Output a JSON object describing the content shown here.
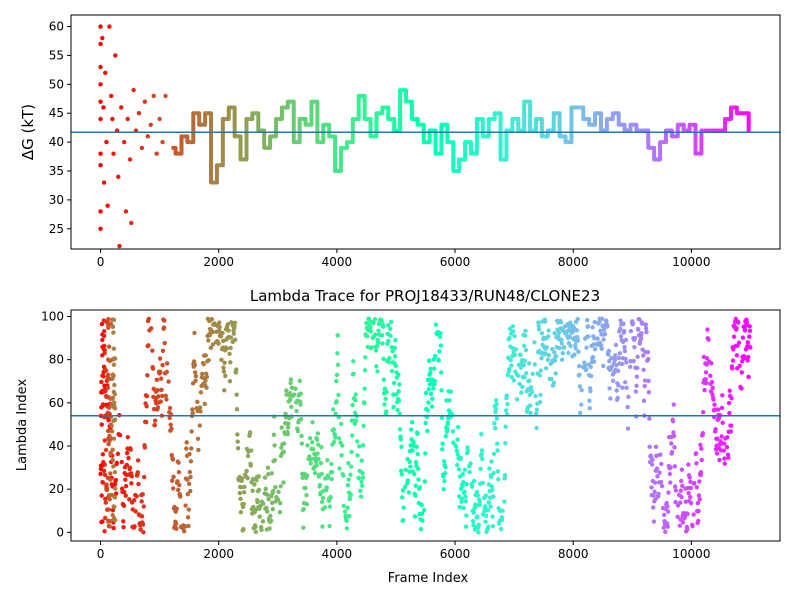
{
  "chart_data": [
    {
      "type": "scatter",
      "title": "",
      "xlabel": "",
      "ylabel": "ΔG (kT)",
      "xlim": [
        -500,
        11500
      ],
      "ylim": [
        21.5,
        62
      ],
      "xticks": [
        0,
        2000,
        4000,
        6000,
        8000,
        10000
      ],
      "yticks": [
        25,
        30,
        35,
        40,
        45,
        50,
        55,
        60
      ],
      "hline": 41.7,
      "colormap": "rainbow (red at frame 0 → violet at last frame)",
      "series": [
        {
          "points": [
            [
              0,
              60
            ],
            [
              0,
              57
            ],
            [
              0,
              53
            ],
            [
              0,
              50
            ],
            [
              0,
              47
            ],
            [
              0,
              44
            ],
            [
              0,
              38
            ],
            [
              0,
              36
            ],
            [
              0,
              28
            ],
            [
              0,
              25
            ],
            [
              30,
              58
            ],
            [
              50,
              46
            ],
            [
              60,
              33
            ],
            [
              80,
              52
            ],
            [
              100,
              40
            ],
            [
              120,
              29
            ],
            [
              150,
              60
            ],
            [
              180,
              48
            ],
            [
              200,
              44
            ],
            [
              220,
              38
            ],
            [
              250,
              55
            ],
            [
              280,
              42
            ],
            [
              300,
              34
            ],
            [
              320,
              22
            ],
            [
              350,
              46
            ],
            [
              400,
              40
            ],
            [
              430,
              28
            ],
            [
              460,
              44
            ],
            [
              500,
              37
            ],
            [
              520,
              26
            ],
            [
              560,
              49
            ],
            [
              600,
              42
            ],
            [
              650,
              45
            ],
            [
              700,
              39
            ],
            [
              750,
              47
            ],
            [
              800,
              41
            ],
            [
              850,
              43
            ],
            [
              900,
              48
            ],
            [
              950,
              38
            ],
            [
              1000,
              44
            ],
            [
              1050,
              40
            ],
            [
              1100,
              48
            ]
          ],
          "trace": [
            [
              1200,
              39
            ],
            [
              1300,
              38
            ],
            [
              1400,
              41
            ],
            [
              1500,
              40
            ],
            [
              1600,
              45
            ],
            [
              1700,
              43
            ],
            [
              1800,
              45
            ],
            [
              1900,
              33
            ],
            [
              2000,
              36
            ],
            [
              2100,
              44
            ],
            [
              2200,
              46
            ],
            [
              2300,
              41
            ],
            [
              2400,
              37
            ],
            [
              2500,
              44
            ],
            [
              2600,
              45
            ],
            [
              2700,
              42
            ],
            [
              2800,
              39
            ],
            [
              2900,
              41
            ],
            [
              3000,
              44
            ],
            [
              3100,
              46
            ],
            [
              3200,
              47
            ],
            [
              3300,
              40
            ],
            [
              3400,
              44
            ],
            [
              3500,
              43
            ],
            [
              3600,
              47
            ],
            [
              3700,
              40
            ],
            [
              3800,
              43
            ],
            [
              3900,
              41
            ],
            [
              4000,
              35
            ],
            [
              4100,
              39
            ],
            [
              4200,
              40
            ],
            [
              4300,
              44
            ],
            [
              4400,
              48
            ],
            [
              4500,
              44
            ],
            [
              4600,
              41
            ],
            [
              4700,
              45
            ],
            [
              4800,
              46
            ],
            [
              4900,
              44
            ],
            [
              5000,
              42
            ],
            [
              5100,
              49
            ],
            [
              5200,
              47
            ],
            [
              5300,
              44
            ],
            [
              5400,
              43
            ],
            [
              5500,
              40
            ],
            [
              5600,
              42
            ],
            [
              5700,
              38
            ],
            [
              5800,
              43
            ],
            [
              5900,
              40
            ],
            [
              6000,
              35
            ],
            [
              6100,
              37
            ],
            [
              6200,
              40
            ],
            [
              6300,
              38
            ],
            [
              6400,
              44
            ],
            [
              6500,
              41
            ],
            [
              6600,
              44
            ],
            [
              6700,
              45
            ],
            [
              6800,
              37
            ],
            [
              6900,
              42
            ],
            [
              7000,
              44
            ],
            [
              7100,
              42
            ],
            [
              7200,
              47
            ],
            [
              7300,
              42
            ],
            [
              7400,
              44
            ],
            [
              7500,
              41
            ],
            [
              7600,
              42
            ],
            [
              7700,
              45
            ],
            [
              7800,
              41
            ],
            [
              7900,
              40
            ],
            [
              8000,
              46
            ],
            [
              8100,
              46
            ],
            [
              8200,
              44
            ],
            [
              8300,
              43
            ],
            [
              8400,
              45
            ],
            [
              8500,
              42
            ],
            [
              8600,
              44
            ],
            [
              8700,
              45
            ],
            [
              8800,
              43
            ],
            [
              8900,
              42
            ],
            [
              9000,
              43
            ],
            [
              9100,
              42
            ],
            [
              9200,
              42
            ],
            [
              9300,
              39
            ],
            [
              9400,
              37
            ],
            [
              9500,
              40
            ],
            [
              9600,
              42
            ],
            [
              9700,
              41
            ],
            [
              9800,
              43
            ],
            [
              9900,
              42
            ],
            [
              10000,
              43
            ],
            [
              10100,
              38
            ],
            [
              10200,
              42
            ],
            [
              10300,
              42
            ],
            [
              10400,
              42
            ],
            [
              10500,
              42
            ],
            [
              10600,
              44
            ],
            [
              10700,
              46
            ],
            [
              10800,
              45
            ],
            [
              10900,
              45
            ],
            [
              11000,
              42
            ]
          ]
        }
      ]
    },
    {
      "type": "scatter",
      "title": "Lambda Trace for PROJ18433/RUN48/CLONE23",
      "xlabel": "Frame Index",
      "ylabel": "Lambda Index",
      "xlim": [
        -500,
        11500
      ],
      "ylim": [
        -4,
        103
      ],
      "xticks": [
        0,
        2000,
        4000,
        6000,
        8000,
        10000
      ],
      "yticks": [
        0,
        20,
        40,
        60,
        80,
        100
      ],
      "hline": 54,
      "colormap": "rainbow (red at frame 0 → violet at last frame)",
      "frames": [
        0,
        11000
      ],
      "lambda_range": [
        0,
        99
      ]
    }
  ]
}
